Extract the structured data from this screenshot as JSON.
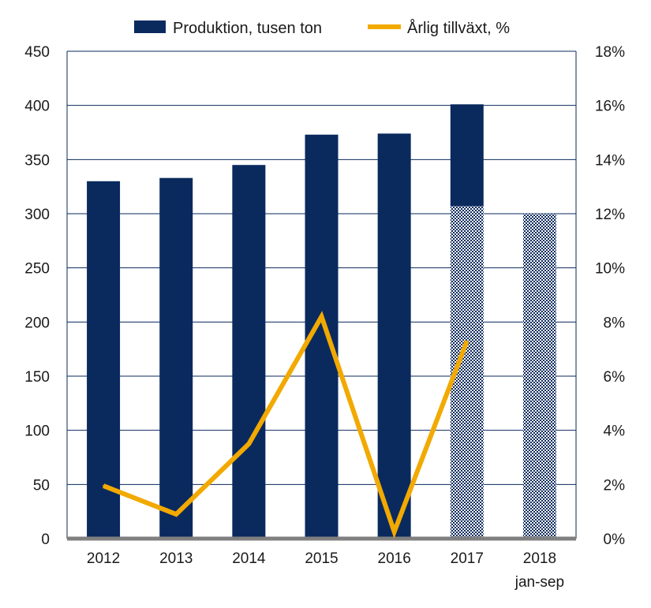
{
  "chart_data": {
    "type": "bar",
    "categories": [
      "2012",
      "2013",
      "2014",
      "2015",
      "2016",
      "2017",
      "2018"
    ],
    "category_sublabels": [
      "",
      "",
      "",
      "",
      "",
      "",
      "jan-sep"
    ],
    "series": [
      {
        "name": "Produktion, tusen ton",
        "type": "bar",
        "axis": "left",
        "color": "#0a2a5e",
        "values": [
          330,
          333,
          345,
          373,
          374,
          401,
          300
        ],
        "hatched_portion": [
          0,
          0,
          0,
          0,
          0,
          307,
          300
        ]
      },
      {
        "name": "Årlig tillväxt, %",
        "type": "line",
        "axis": "right",
        "color": "#f2a900",
        "values": [
          1.95,
          0.9,
          3.5,
          8.2,
          0.25,
          7.3,
          null
        ]
      }
    ],
    "y_left": {
      "min": 0,
      "max": 450,
      "step": 50,
      "ticks": [
        "0",
        "50",
        "100",
        "150",
        "200",
        "250",
        "300",
        "350",
        "400",
        "450"
      ]
    },
    "y_right": {
      "min": 0,
      "max": 18,
      "step": 2,
      "ticks": [
        "0%",
        "2%",
        "4%",
        "6%",
        "8%",
        "10%",
        "12%",
        "14%",
        "16%",
        "18%"
      ]
    },
    "grid": true,
    "legend_position": "top"
  }
}
